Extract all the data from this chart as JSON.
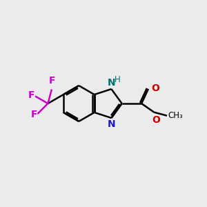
{
  "background_color": "#ebebeb",
  "bond_color": "#000000",
  "bond_width": 1.8,
  "N_color": "#1a1acc",
  "NH_color": "#007070",
  "O_color": "#cc0000",
  "F_color": "#cc00cc",
  "font_size": 10,
  "fig_size": [
    3.0,
    3.0
  ],
  "dpi": 100,
  "xlim": [
    0.0,
    10.0
  ],
  "ylim": [
    1.5,
    8.5
  ]
}
